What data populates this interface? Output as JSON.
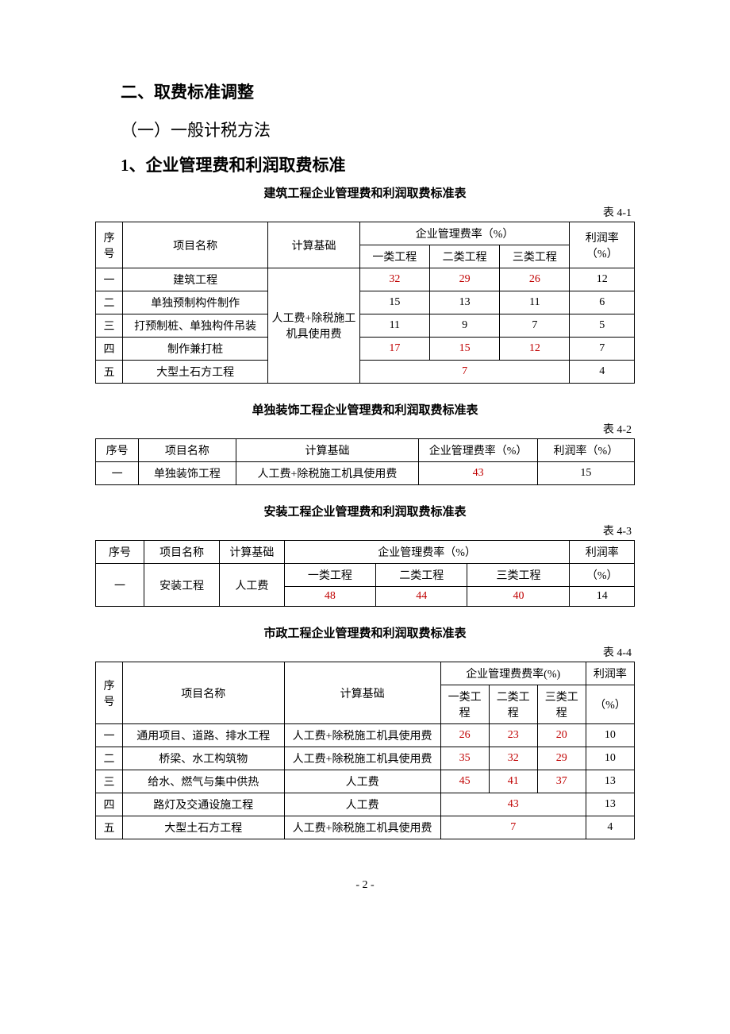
{
  "headings": {
    "h2": "二、取费标准调整",
    "sub1": "（一）一般计税方法",
    "h3": "1、企业管理费和利润取费标准"
  },
  "table1": {
    "title": "建筑工程企业管理费和利润取费标准表",
    "tag": "表 4-1",
    "hdr": {
      "seq": "序号",
      "name": "项目名称",
      "basis": "计算基础",
      "mgmt": "企业管理费率（%）",
      "c1": "一类工程",
      "c2": "二类工程",
      "c3": "三类工程",
      "profit": "利润率（%）"
    },
    "basis_text": "人工费+除税施工机具使用费",
    "rows": [
      {
        "seq": "一",
        "name": "建筑工程",
        "v": [
          "32",
          "29",
          "26"
        ],
        "red": true,
        "p": "12"
      },
      {
        "seq": "二",
        "name": "单独预制构件制作",
        "v": [
          "15",
          "13",
          "11"
        ],
        "red": false,
        "p": "6"
      },
      {
        "seq": "三",
        "name": "打预制桩、单独构件吊装",
        "v": [
          "11",
          "9",
          "7"
        ],
        "red": false,
        "p": "5"
      },
      {
        "seq": "四",
        "name": "制作兼打桩",
        "v": [
          "17",
          "15",
          "12"
        ],
        "red": true,
        "p": "7"
      },
      {
        "seq": "五",
        "name": "大型土石方工程",
        "merged": "7",
        "red": true,
        "p": "4"
      }
    ]
  },
  "table2": {
    "title": "单独装饰工程企业管理费和利润取费标准表",
    "tag": "表 4-2",
    "hdr": {
      "seq": "序号",
      "name": "项目名称",
      "basis": "计算基础",
      "mgmt": "企业管理费率（%）",
      "profit": "利润率（%）"
    },
    "row": {
      "seq": "一",
      "name": "单独装饰工程",
      "basis": "人工费+除税施工机具使用费",
      "v": "43",
      "p": "15"
    }
  },
  "table3": {
    "title": "安装工程企业管理费和利润取费标准表",
    "tag": "表 4-3",
    "hdr": {
      "seq": "序号",
      "name": "项目名称",
      "basis": "计算基础",
      "mgmt": "企业管理费率（%）",
      "profit": "利润率",
      "c1": "一类工程",
      "c2": "二类工程",
      "c3": "三类工程",
      "pct": "（%）"
    },
    "row": {
      "seq": "一",
      "name": "安装工程",
      "basis": "人工费",
      "v": [
        "48",
        "44",
        "40"
      ],
      "p": "14"
    }
  },
  "table4": {
    "title": "市政工程企业管理费和利润取费标准表",
    "tag": "表 4-4",
    "hdr": {
      "seq": "序号",
      "name": "项目名称",
      "basis": "计算基础",
      "mgmt": "企业管理费费率(%)",
      "profit": "利润率",
      "c1": "一类工程",
      "c2": "二类工程",
      "c3": "三类工程",
      "pct": "（%）"
    },
    "rows": [
      {
        "seq": "一",
        "name": "通用项目、道路、排水工程",
        "basis": "人工费+除税施工机具使用费",
        "v": [
          "26",
          "23",
          "20"
        ],
        "red": true,
        "p": "10"
      },
      {
        "seq": "二",
        "name": "桥梁、水工构筑物",
        "basis": "人工费+除税施工机具使用费",
        "v": [
          "35",
          "32",
          "29"
        ],
        "red": true,
        "p": "10"
      },
      {
        "seq": "三",
        "name": "给水、燃气与集中供热",
        "basis": "人工费",
        "v": [
          "45",
          "41",
          "37"
        ],
        "red": true,
        "p": "13"
      },
      {
        "seq": "四",
        "name": "路灯及交通设施工程",
        "basis": "人工费",
        "merged": "43",
        "red": true,
        "p": "13"
      },
      {
        "seq": "五",
        "name": "大型土石方工程",
        "basis": "人工费+除税施工机具使用费",
        "merged": "7",
        "red": true,
        "p": "4"
      }
    ]
  },
  "page": "- 2 -"
}
